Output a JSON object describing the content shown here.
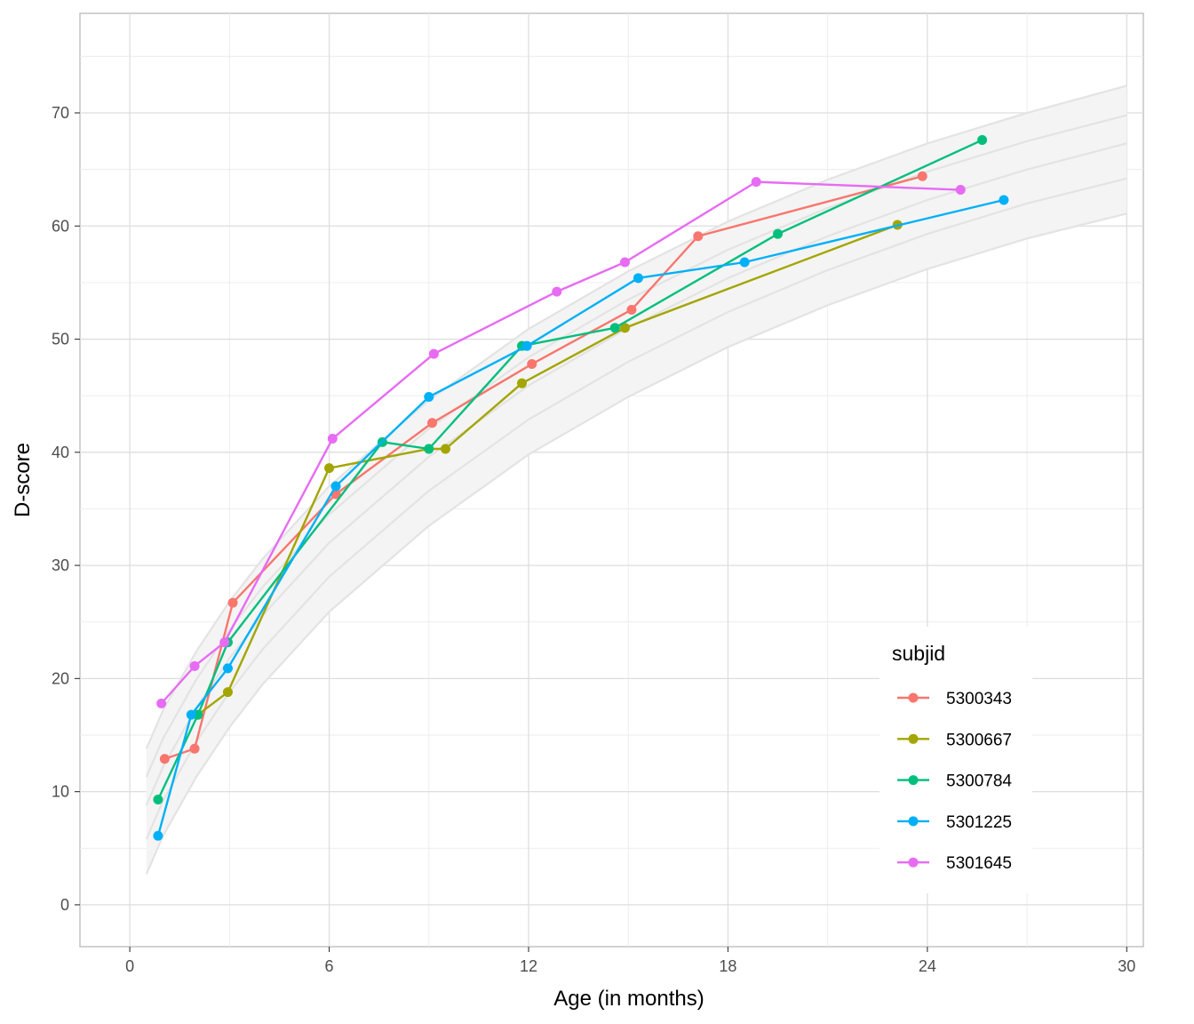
{
  "chart_data": {
    "type": "line",
    "xlabel": "Age (in months)",
    "ylabel": "D-score",
    "xlim": [
      -1.5,
      30.5
    ],
    "ylim": [
      -3.7,
      78.8
    ],
    "x_ticks": [
      0,
      6,
      12,
      18,
      24,
      30
    ],
    "y_ticks": [
      0,
      10,
      20,
      30,
      40,
      50,
      60,
      70
    ],
    "grid": true,
    "legend": {
      "title": "subjid",
      "position": "bottom-right"
    },
    "reference_band": {
      "x": [
        0.5,
        1,
        2,
        3,
        4,
        6,
        9,
        12,
        15,
        18,
        21,
        24,
        27,
        30
      ],
      "curves": [
        [
          13.8,
          17.2,
          22.4,
          26.8,
          30.6,
          37.0,
          44.6,
          50.9,
          56.0,
          60.4,
          64.1,
          67.3,
          70.0,
          72.4
        ],
        [
          11.3,
          14.7,
          19.9,
          24.3,
          28.1,
          34.5,
          42.1,
          48.4,
          53.5,
          57.9,
          61.6,
          64.8,
          67.5,
          69.8
        ],
        [
          8.8,
          12.2,
          17.4,
          21.8,
          25.6,
          32.0,
          39.6,
          45.9,
          51.0,
          55.4,
          59.1,
          62.3,
          65.0,
          67.3
        ],
        [
          5.8,
          9.2,
          14.4,
          18.8,
          22.6,
          29.0,
          36.6,
          42.9,
          48.0,
          52.4,
          56.1,
          59.3,
          62.0,
          64.2
        ],
        [
          2.7,
          6.1,
          11.3,
          15.7,
          19.5,
          25.9,
          33.5,
          39.8,
          44.9,
          49.3,
          53.0,
          56.2,
          58.9,
          61.1
        ]
      ]
    },
    "series": [
      {
        "name": "5300343",
        "color": "#f8766d",
        "x": [
          1.05,
          1.95,
          3.1,
          6.2,
          9.1,
          12.1,
          15.1,
          17.1,
          23.85
        ],
        "y": [
          12.9,
          13.8,
          26.7,
          36.3,
          42.6,
          47.8,
          52.6,
          59.1,
          64.4
        ]
      },
      {
        "name": "5300667",
        "color": "#a3a500",
        "x": [
          2.05,
          2.95,
          6.0,
          9.0,
          9.5,
          11.8,
          14.9,
          23.1
        ],
        "y": [
          16.8,
          18.8,
          38.6,
          40.3,
          40.3,
          46.1,
          51.0,
          60.1
        ]
      },
      {
        "name": "5300784",
        "color": "#00bf7d",
        "x": [
          0.85,
          2.05,
          2.95,
          7.6,
          9.0,
          11.8,
          14.6,
          19.5,
          25.65
        ],
        "y": [
          9.3,
          16.8,
          23.2,
          40.9,
          40.3,
          49.4,
          51.0,
          59.3,
          67.6
        ]
      },
      {
        "name": "5301225",
        "color": "#00b0f6",
        "x": [
          0.85,
          1.85,
          2.95,
          6.2,
          9.0,
          11.95,
          15.3,
          18.5,
          26.3
        ],
        "y": [
          6.1,
          16.8,
          20.9,
          37.0,
          44.9,
          49.4,
          55.4,
          56.8,
          62.3
        ]
      },
      {
        "name": "5301645",
        "color": "#e76bf3",
        "x": [
          0.95,
          1.95,
          2.85,
          6.1,
          9.15,
          12.85,
          14.9,
          18.85,
          25.0
        ],
        "y": [
          17.8,
          21.1,
          23.2,
          41.2,
          48.7,
          54.2,
          56.8,
          63.9,
          63.2
        ]
      }
    ]
  }
}
